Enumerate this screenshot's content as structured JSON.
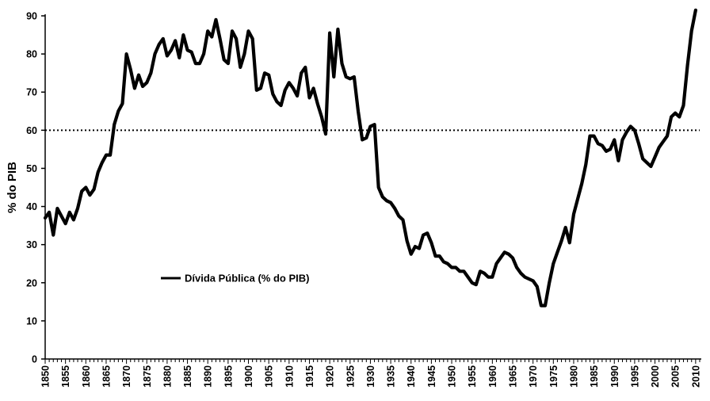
{
  "chart_data": {
    "type": "line",
    "title": "",
    "xlabel": "",
    "ylabel": "% do PIB",
    "xlim": [
      1850,
      2011
    ],
    "ylim": [
      0,
      90
    ],
    "y_ticks": [
      0,
      10,
      20,
      30,
      40,
      50,
      60,
      70,
      80,
      90
    ],
    "x_tick_step": 1,
    "x_label_step": 5,
    "grid": false,
    "legend": {
      "position": "middle-left"
    },
    "reference_line": {
      "y": 60,
      "style": "dotted"
    },
    "series": [
      {
        "name": "Dívida Pública (% do PIB)",
        "color": "#000000",
        "points": [
          [
            1850,
            37
          ],
          [
            1851,
            38.5
          ],
          [
            1852,
            32.5
          ],
          [
            1853,
            39.5
          ],
          [
            1854,
            37.5
          ],
          [
            1855,
            35.5
          ],
          [
            1856,
            38.5
          ],
          [
            1857,
            36.5
          ],
          [
            1858,
            39.5
          ],
          [
            1859,
            44
          ],
          [
            1860,
            45
          ],
          [
            1861,
            43
          ],
          [
            1862,
            44.5
          ],
          [
            1863,
            49
          ],
          [
            1864,
            51.5
          ],
          [
            1865,
            53.5
          ],
          [
            1866,
            53.5
          ],
          [
            1867,
            61.5
          ],
          [
            1868,
            65
          ],
          [
            1869,
            67
          ],
          [
            1870,
            80
          ],
          [
            1871,
            76
          ],
          [
            1872,
            71
          ],
          [
            1873,
            74.5
          ],
          [
            1874,
            71.5
          ],
          [
            1875,
            72.5
          ],
          [
            1876,
            75
          ],
          [
            1877,
            80
          ],
          [
            1878,
            82.5
          ],
          [
            1879,
            84
          ],
          [
            1880,
            79.5
          ],
          [
            1881,
            81
          ],
          [
            1882,
            83.5
          ],
          [
            1883,
            79
          ],
          [
            1884,
            85
          ],
          [
            1885,
            81
          ],
          [
            1886,
            80.5
          ],
          [
            1887,
            77.5
          ],
          [
            1888,
            77.5
          ],
          [
            1889,
            80
          ],
          [
            1890,
            86
          ],
          [
            1891,
            84.5
          ],
          [
            1892,
            89
          ],
          [
            1893,
            84
          ],
          [
            1894,
            78.5
          ],
          [
            1895,
            77.5
          ],
          [
            1896,
            86
          ],
          [
            1897,
            84
          ],
          [
            1898,
            76.5
          ],
          [
            1899,
            80
          ],
          [
            1900,
            86
          ],
          [
            1901,
            84
          ],
          [
            1902,
            70.5
          ],
          [
            1903,
            71
          ],
          [
            1904,
            75
          ],
          [
            1905,
            74.5
          ],
          [
            1906,
            69.5
          ],
          [
            1907,
            67.5
          ],
          [
            1908,
            66.5
          ],
          [
            1909,
            70.5
          ],
          [
            1910,
            72.5
          ],
          [
            1911,
            71
          ],
          [
            1912,
            69
          ],
          [
            1913,
            75
          ],
          [
            1914,
            76.5
          ],
          [
            1915,
            68.5
          ],
          [
            1916,
            71
          ],
          [
            1917,
            67
          ],
          [
            1918,
            63.5
          ],
          [
            1919,
            59
          ],
          [
            1920,
            85.5
          ],
          [
            1921,
            74
          ],
          [
            1922,
            86.5
          ],
          [
            1923,
            77.5
          ],
          [
            1924,
            74
          ],
          [
            1925,
            73.5
          ],
          [
            1926,
            74
          ],
          [
            1927,
            65
          ],
          [
            1928,
            57.5
          ],
          [
            1929,
            58
          ],
          [
            1930,
            61
          ],
          [
            1931,
            61.5
          ],
          [
            1932,
            45
          ],
          [
            1933,
            42.5
          ],
          [
            1934,
            41.5
          ],
          [
            1935,
            41
          ],
          [
            1936,
            39.5
          ],
          [
            1937,
            37.5
          ],
          [
            1938,
            36.5
          ],
          [
            1939,
            31
          ],
          [
            1940,
            27.5
          ],
          [
            1941,
            29.5
          ],
          [
            1942,
            29
          ],
          [
            1943,
            32.5
          ],
          [
            1944,
            33
          ],
          [
            1945,
            30.5
          ],
          [
            1946,
            27
          ],
          [
            1947,
            27
          ],
          [
            1948,
            25.5
          ],
          [
            1949,
            25
          ],
          [
            1950,
            24
          ],
          [
            1951,
            24
          ],
          [
            1952,
            23
          ],
          [
            1953,
            23
          ],
          [
            1954,
            21.5
          ],
          [
            1955,
            20
          ],
          [
            1956,
            19.5
          ],
          [
            1957,
            23
          ],
          [
            1958,
            22.5
          ],
          [
            1959,
            21.5
          ],
          [
            1960,
            21.5
          ],
          [
            1961,
            25
          ],
          [
            1962,
            26.5
          ],
          [
            1963,
            28
          ],
          [
            1964,
            27.5
          ],
          [
            1965,
            26.5
          ],
          [
            1966,
            24
          ],
          [
            1967,
            22.5
          ],
          [
            1968,
            21.5
          ],
          [
            1969,
            21
          ],
          [
            1970,
            20.5
          ],
          [
            1971,
            19
          ],
          [
            1972,
            14
          ],
          [
            1973,
            14
          ],
          [
            1974,
            20
          ],
          [
            1975,
            25
          ],
          [
            1976,
            28
          ],
          [
            1977,
            31
          ],
          [
            1978,
            34.5
          ],
          [
            1979,
            30.5
          ],
          [
            1980,
            38
          ],
          [
            1981,
            42
          ],
          [
            1982,
            46
          ],
          [
            1983,
            51
          ],
          [
            1984,
            58.5
          ],
          [
            1985,
            58.5
          ],
          [
            1986,
            56.5
          ],
          [
            1987,
            56
          ],
          [
            1988,
            54.5
          ],
          [
            1989,
            55
          ],
          [
            1990,
            57.5
          ],
          [
            1991,
            52
          ],
          [
            1992,
            57.5
          ],
          [
            1993,
            59.5
          ],
          [
            1994,
            61
          ],
          [
            1995,
            60
          ],
          [
            1996,
            56.5
          ],
          [
            1997,
            52.5
          ],
          [
            1998,
            51.5
          ],
          [
            1999,
            50.5
          ],
          [
            2000,
            53
          ],
          [
            2001,
            55.5
          ],
          [
            2002,
            57
          ],
          [
            2003,
            58.5
          ],
          [
            2004,
            63.5
          ],
          [
            2005,
            64.5
          ],
          [
            2006,
            63.5
          ],
          [
            2007,
            66.5
          ],
          [
            2008,
            77
          ],
          [
            2009,
            86
          ],
          [
            2010,
            91.5
          ]
        ]
      }
    ]
  }
}
